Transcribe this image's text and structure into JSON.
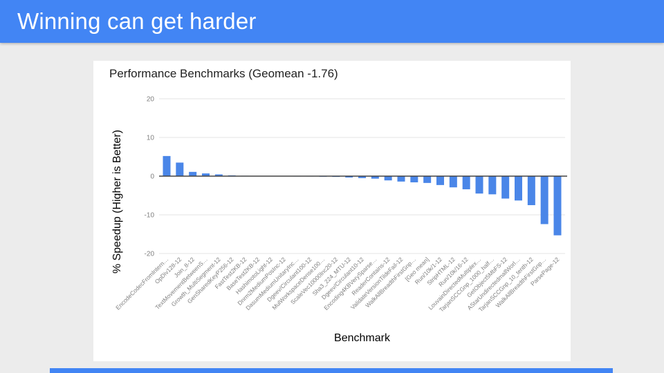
{
  "header": {
    "title": "Winning can get harder"
  },
  "colors": {
    "header_bg": "#4285f4",
    "slide_bg": "#ececec",
    "card_bg": "#ffffff",
    "bar": "#4a86e8",
    "grid": "#e3e3e3",
    "axis_line": "#424242",
    "tick_label": "#7f7f7f",
    "title_text": "#212121",
    "footer_strip": "#4285f4"
  },
  "chart_data": {
    "type": "bar",
    "title": "Performance Benchmarks (Geomean -1.76)",
    "xlabel": "Benchmark",
    "ylabel": "% Speedup (Higher is Better)",
    "ylim": [
      -20,
      20
    ],
    "yticks": [
      20,
      10,
      0,
      -10,
      -20
    ],
    "grid": true,
    "legend": "none",
    "bar_color": "#4a86e8",
    "categories": [
      "EncodeCodecFromIntern…",
      "OpDiv128-12",
      "Join_8-12",
      "TextMovementBetweenS…",
      "Growth_MultiSegment-12",
      "GenSharedKeyP256-12",
      "FastTest2KB-12",
      "BaseTest2KB-12",
      "HashimotoLight-12",
      "Dnrm2MediumPosInc-12",
      "DasumMediumUnitaryInc…",
      "Dgeev/Circulant100-12",
      "MulWorkspaceDense100…",
      "ScaleVec10000Inc20-12",
      "Sha3_224_MTU-12",
      "Dgeev/Circulant10-12",
      "Encoding4KBVerySparse…",
      "ReaderContains-12",
      "ValidateVersionTildeFail-12",
      "WalkAllBreadthFirstGnp…",
      "[Geo mean]",
      "Run/10k/1-12",
      "StripHTML-12",
      "Run/10k/16-12",
      "LouvainDirectedMultiplex…",
      "TarjanSCCGnp_1000_half…",
      "GetObject5MbFS-12",
      "AStarUndirectedmallWorl…",
      "TarjanSCCGnp_10_tenth-12",
      "WalkAllBreadthFirstGnp…",
      "ParsePage-12"
    ],
    "values": [
      5.2,
      3.5,
      1.1,
      0.7,
      0.45,
      0.2,
      0.1,
      0.05,
      0,
      -0.05,
      -0.1,
      -0.1,
      -0.15,
      -0.2,
      -0.35,
      -0.5,
      -0.65,
      -1.1,
      -1.4,
      -1.6,
      -1.76,
      -2.3,
      -2.9,
      -3.4,
      -4.5,
      -4.7,
      -5.8,
      -6.3,
      -7.5,
      -12.4,
      -15.3
    ]
  }
}
